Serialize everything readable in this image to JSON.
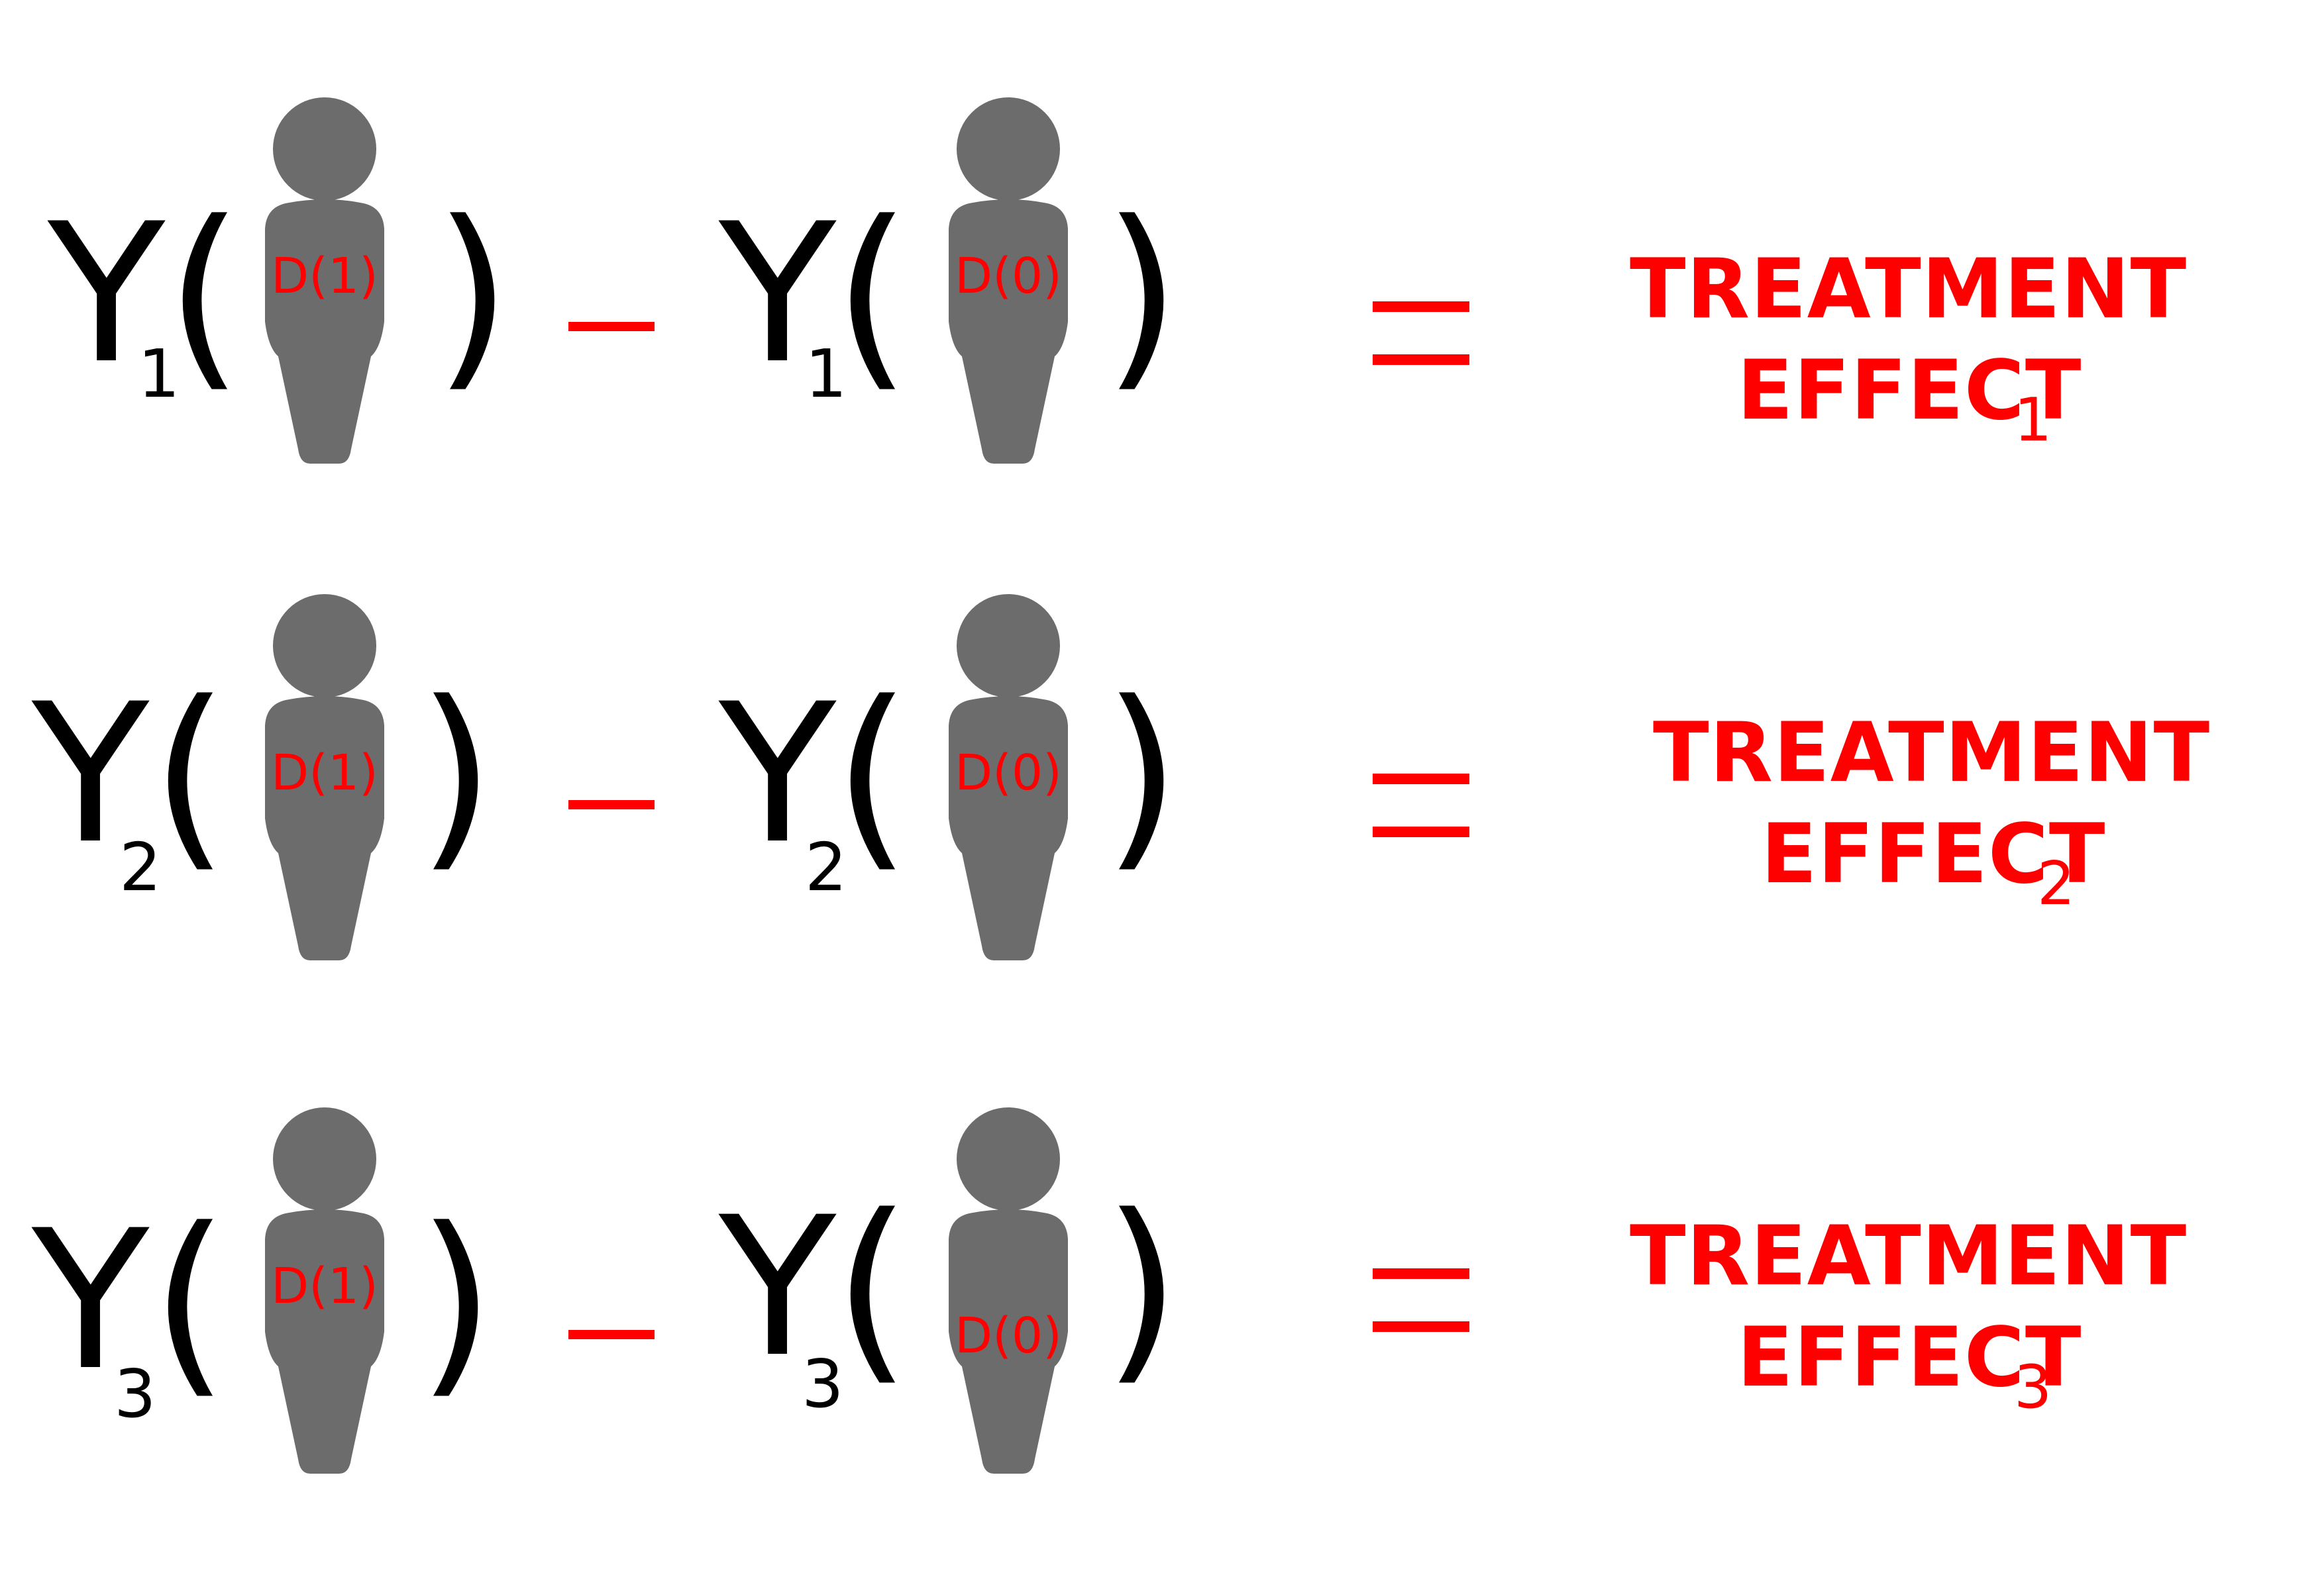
{
  "rows": [
    {
      "left_outcome": "Y",
      "left_index": "1",
      "treated_label": "D(1)",
      "right_outcome": "Y",
      "right_index": "1",
      "control_label": "D(0)",
      "result_line1": "TREATMENT",
      "result_line2": "EFFECT",
      "result_index": "1"
    },
    {
      "left_outcome": "Y",
      "left_index": "2",
      "treated_label": "D(1)",
      "right_outcome": "Y",
      "right_index": "2",
      "control_label": "D(0)",
      "result_line1": "TREATMENT",
      "result_line2": "EFFECT",
      "result_index": "2"
    },
    {
      "left_outcome": "Y",
      "left_index": "3",
      "treated_label": "D(1)",
      "right_outcome": "Y",
      "right_index": "3",
      "control_label": "D(0)",
      "result_line1": "TREATMENT",
      "result_line2": "EFFECT",
      "result_index": "3"
    }
  ],
  "colors": {
    "person": "#6d6c6d",
    "accent": "#ff0000",
    "text": "#000000"
  },
  "icons": {
    "person": "person-icon"
  }
}
